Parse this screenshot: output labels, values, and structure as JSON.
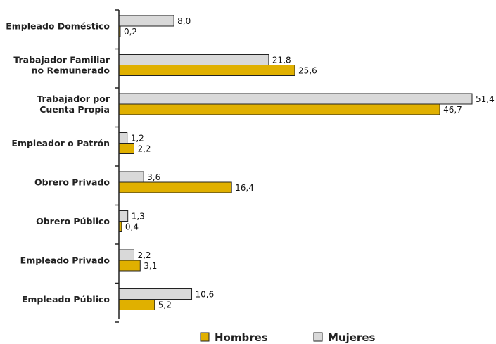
{
  "chart_data": {
    "type": "bar",
    "orientation": "horizontal",
    "categories": [
      [
        "Empleado Doméstico"
      ],
      [
        "Trabajador Familiar",
        "no Remunerado"
      ],
      [
        "Trabajador por",
        "Cuenta Propia"
      ],
      [
        "Empleador o Patrón"
      ],
      [
        "Obrero Privado"
      ],
      [
        "Obrero Público"
      ],
      [
        "Empleado Privado"
      ],
      [
        "Empleado Público"
      ]
    ],
    "series": [
      {
        "name": "Mujeres",
        "color": "#d9d9d9",
        "values": [
          8.0,
          21.8,
          51.4,
          1.2,
          3.6,
          1.3,
          2.2,
          10.6
        ],
        "labels": [
          "8,0",
          "21,8",
          "51,4",
          "1,2",
          "3,6",
          "1,3",
          "2,2",
          "10,6"
        ]
      },
      {
        "name": "Hombres",
        "color": "#e0b000",
        "values": [
          0.2,
          25.6,
          46.7,
          2.2,
          16.4,
          0.4,
          3.1,
          5.2
        ],
        "labels": [
          "0,2",
          "25,6",
          "46,7",
          "2,2",
          "16,4",
          "0,4",
          "3,1",
          "5,2"
        ]
      }
    ],
    "xlim": [
      0,
      52
    ],
    "grid": false,
    "legend_position": "bottom",
    "legend_order": [
      "Hombres",
      "Mujeres"
    ]
  }
}
